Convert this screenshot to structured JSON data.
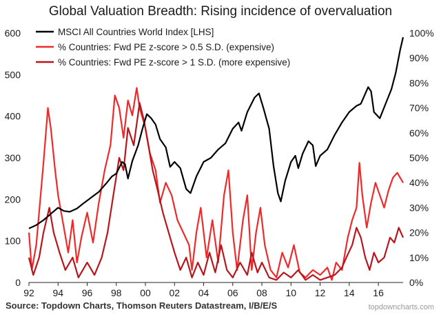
{
  "chart_data": {
    "type": "line",
    "title": "Global Valuation Breadth: Rising incidence of overvaluation",
    "source": "Source: Topdown Charts, Thomson Reuters Datastream, I/B/E/S",
    "watermark": "topdowncharts.com",
    "x_ticks": [
      "92",
      "94",
      "96",
      "98",
      "00",
      "02",
      "04",
      "06",
      "08",
      "10",
      "12",
      "14",
      "16"
    ],
    "x_tick_years": [
      1992,
      1994,
      1996,
      1998,
      2000,
      2002,
      2004,
      2006,
      2008,
      2010,
      2012,
      2014,
      2016
    ],
    "xlim": [
      1992,
      2017.7
    ],
    "left_axis": {
      "ylim": [
        0,
        600
      ],
      "ticks": [
        "0",
        "100",
        "200",
        "300",
        "400",
        "500",
        "600"
      ],
      "tick_values": [
        0,
        100,
        200,
        300,
        400,
        500,
        600
      ]
    },
    "right_axis": {
      "ylim": [
        0,
        100
      ],
      "ticks": [
        "0%",
        "10%",
        "20%",
        "30%",
        "40%",
        "50%",
        "60%",
        "70%",
        "80%",
        "90%",
        "100%"
      ],
      "tick_values": [
        0,
        10,
        20,
        30,
        40,
        50,
        60,
        70,
        80,
        90,
        100
      ]
    },
    "legend_position": "top-left",
    "series": [
      {
        "name": "MSCI All Countries World Index [LHS]",
        "axis": "left",
        "color": "#000000",
        "points": [
          [
            1992,
            130
          ],
          [
            1992.5,
            138
          ],
          [
            1993,
            150
          ],
          [
            1993.5,
            165
          ],
          [
            1994,
            180
          ],
          [
            1994.4,
            172
          ],
          [
            1994.8,
            170
          ],
          [
            1995.3,
            178
          ],
          [
            1995.8,
            192
          ],
          [
            1996.3,
            205
          ],
          [
            1996.8,
            218
          ],
          [
            1997.3,
            238
          ],
          [
            1997.7,
            255
          ],
          [
            1998,
            262
          ],
          [
            1998.4,
            290
          ],
          [
            1998.6,
            285
          ],
          [
            1998.8,
            250
          ],
          [
            1999.1,
            292
          ],
          [
            1999.5,
            330
          ],
          [
            1999.8,
            370
          ],
          [
            2000.1,
            405
          ],
          [
            2000.4,
            395
          ],
          [
            2000.7,
            380
          ],
          [
            2001,
            345
          ],
          [
            2001.4,
            325
          ],
          [
            2001.7,
            278
          ],
          [
            2002,
            290
          ],
          [
            2002.4,
            275
          ],
          [
            2002.8,
            225
          ],
          [
            2003.1,
            215
          ],
          [
            2003.5,
            255
          ],
          [
            2004,
            290
          ],
          [
            2004.5,
            300
          ],
          [
            2005,
            320
          ],
          [
            2005.5,
            335
          ],
          [
            2006,
            370
          ],
          [
            2006.4,
            385
          ],
          [
            2006.6,
            365
          ],
          [
            2007,
            410
          ],
          [
            2007.5,
            445
          ],
          [
            2007.8,
            455
          ],
          [
            2008.1,
            420
          ],
          [
            2008.5,
            370
          ],
          [
            2008.8,
            280
          ],
          [
            2009.1,
            215
          ],
          [
            2009.3,
            195
          ],
          [
            2009.6,
            245
          ],
          [
            2010,
            290
          ],
          [
            2010.3,
            305
          ],
          [
            2010.5,
            275
          ],
          [
            2010.8,
            310
          ],
          [
            2011.2,
            340
          ],
          [
            2011.5,
            330
          ],
          [
            2011.7,
            280
          ],
          [
            2012,
            305
          ],
          [
            2012.5,
            320
          ],
          [
            2013,
            355
          ],
          [
            2013.5,
            385
          ],
          [
            2014,
            410
          ],
          [
            2014.5,
            425
          ],
          [
            2014.8,
            430
          ],
          [
            2015.3,
            470
          ],
          [
            2015.5,
            460
          ],
          [
            2015.7,
            410
          ],
          [
            2016.1,
            395
          ],
          [
            2016.5,
            430
          ],
          [
            2016.9,
            465
          ],
          [
            2017.2,
            505
          ],
          [
            2017.5,
            560
          ],
          [
            2017.7,
            590
          ]
        ]
      },
      {
        "name": "% Countries: Fwd PE z-score > 0.5 S.D. (expensive)",
        "axis": "right",
        "color": "#f02828",
        "points": [
          [
            1992,
            20
          ],
          [
            1992.2,
            5
          ],
          [
            1992.5,
            15
          ],
          [
            1993,
            48
          ],
          [
            1993.3,
            70
          ],
          [
            1993.5,
            62
          ],
          [
            1993.8,
            45
          ],
          [
            1994,
            35
          ],
          [
            1994.4,
            22
          ],
          [
            1994.7,
            12
          ],
          [
            1995,
            25
          ],
          [
            1995.3,
            8
          ],
          [
            1995.6,
            18
          ],
          [
            1996,
            28
          ],
          [
            1996.4,
            16
          ],
          [
            1996.8,
            32
          ],
          [
            1997.2,
            45
          ],
          [
            1997.6,
            55
          ],
          [
            1997.9,
            75
          ],
          [
            1998.2,
            70
          ],
          [
            1998.5,
            58
          ],
          [
            1998.8,
            73
          ],
          [
            1999.1,
            67
          ],
          [
            1999.4,
            78
          ],
          [
            1999.6,
            70
          ],
          [
            2000,
            62
          ],
          [
            2000.3,
            52
          ],
          [
            2000.7,
            45
          ],
          [
            2001,
            32
          ],
          [
            2001.4,
            40
          ],
          [
            2001.8,
            35
          ],
          [
            2002.2,
            25
          ],
          [
            2002.6,
            20
          ],
          [
            2003,
            15
          ],
          [
            2003.2,
            5
          ],
          [
            2003.5,
            20
          ],
          [
            2003.8,
            30
          ],
          [
            2004.2,
            10
          ],
          [
            2004.6,
            25
          ],
          [
            2005,
            8
          ],
          [
            2005.4,
            35
          ],
          [
            2005.7,
            45
          ],
          [
            2006,
            20
          ],
          [
            2006.3,
            5
          ],
          [
            2006.7,
            25
          ],
          [
            2007,
            35
          ],
          [
            2007.3,
            5
          ],
          [
            2007.6,
            20
          ],
          [
            2007.9,
            30
          ],
          [
            2008.2,
            15
          ],
          [
            2008.6,
            5
          ],
          [
            2009,
            2
          ],
          [
            2009.4,
            12
          ],
          [
            2009.8,
            6
          ],
          [
            2010.2,
            15
          ],
          [
            2010.6,
            4
          ],
          [
            2011,
            2
          ],
          [
            2011.5,
            5
          ],
          [
            2012,
            3
          ],
          [
            2012.5,
            6
          ],
          [
            2012.8,
            1
          ],
          [
            2013.1,
            8
          ],
          [
            2013.5,
            5
          ],
          [
            2013.9,
            18
          ],
          [
            2014.2,
            25
          ],
          [
            2014.5,
            30
          ],
          [
            2014.7,
            48
          ],
          [
            2014.9,
            35
          ],
          [
            2015.2,
            22
          ],
          [
            2015.5,
            32
          ],
          [
            2015.8,
            40
          ],
          [
            2016.1,
            35
          ],
          [
            2016.4,
            30
          ],
          [
            2016.7,
            37
          ],
          [
            2017,
            42
          ],
          [
            2017.3,
            44
          ],
          [
            2017.7,
            40
          ]
        ]
      },
      {
        "name": "% Countries: Fwd PE z-score > 1 S.D. (more expensive)",
        "axis": "right",
        "color": "#b8141c",
        "points": [
          [
            1992,
            10
          ],
          [
            1992.3,
            3
          ],
          [
            1992.7,
            10
          ],
          [
            1993,
            20
          ],
          [
            1993.4,
            30
          ],
          [
            1993.7,
            20
          ],
          [
            1994.1,
            12
          ],
          [
            1994.5,
            5
          ],
          [
            1995,
            10
          ],
          [
            1995.4,
            2
          ],
          [
            1996,
            8
          ],
          [
            1996.5,
            3
          ],
          [
            1997,
            10
          ],
          [
            1997.4,
            20
          ],
          [
            1997.8,
            35
          ],
          [
            1998.2,
            50
          ],
          [
            1998.5,
            45
          ],
          [
            1998.8,
            62
          ],
          [
            1999.2,
            55
          ],
          [
            1999.6,
            72
          ],
          [
            1999.9,
            65
          ],
          [
            2000.2,
            55
          ],
          [
            2000.5,
            45
          ],
          [
            2000.8,
            38
          ],
          [
            2001.2,
            28
          ],
          [
            2001.6,
            20
          ],
          [
            2002,
            12
          ],
          [
            2002.4,
            5
          ],
          [
            2002.8,
            10
          ],
          [
            2003.2,
            2
          ],
          [
            2003.6,
            8
          ],
          [
            2004,
            3
          ],
          [
            2004.4,
            12
          ],
          [
            2004.8,
            4
          ],
          [
            2005.2,
            15
          ],
          [
            2005.6,
            5
          ],
          [
            2006,
            2
          ],
          [
            2006.5,
            8
          ],
          [
            2007,
            3
          ],
          [
            2007.3,
            12
          ],
          [
            2007.7,
            4
          ],
          [
            2008,
            8
          ],
          [
            2008.5,
            2
          ],
          [
            2009,
            1
          ],
          [
            2009.5,
            4
          ],
          [
            2010,
            2
          ],
          [
            2010.5,
            5
          ],
          [
            2011,
            1
          ],
          [
            2011.5,
            3
          ],
          [
            2012,
            1
          ],
          [
            2012.5,
            2
          ],
          [
            2013,
            3
          ],
          [
            2013.5,
            6
          ],
          [
            2013.8,
            10
          ],
          [
            2014.2,
            15
          ],
          [
            2014.5,
            22
          ],
          [
            2014.8,
            18
          ],
          [
            2015.1,
            10
          ],
          [
            2015.4,
            5
          ],
          [
            2015.7,
            12
          ],
          [
            2016,
            8
          ],
          [
            2016.4,
            10
          ],
          [
            2016.8,
            18
          ],
          [
            2017.1,
            16
          ],
          [
            2017.4,
            22
          ],
          [
            2017.7,
            18
          ]
        ]
      }
    ]
  }
}
